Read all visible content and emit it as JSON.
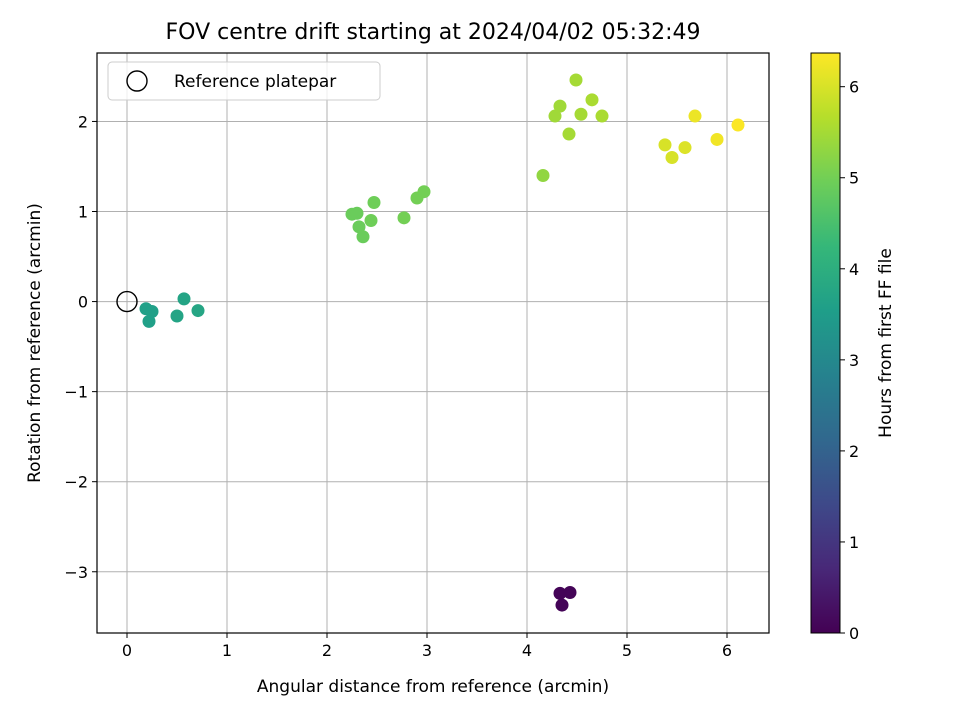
{
  "chart_data": {
    "type": "scatter",
    "title": "FOV centre drift starting at 2024/04/02 05:32:49",
    "xlabel": "Angular distance from reference (arcmin)",
    "ylabel": "Rotation from reference (arcmin)",
    "xlim": [
      -0.3,
      6.42
    ],
    "ylim": [
      -3.68,
      2.76
    ],
    "xticks": [
      0,
      1,
      2,
      3,
      4,
      5,
      6
    ],
    "yticks": [
      -3,
      -2,
      -1,
      0,
      1,
      2
    ],
    "xtick_labels": [
      "0",
      "1",
      "2",
      "3",
      "4",
      "5",
      "6"
    ],
    "ytick_labels": [
      "−3",
      "−2",
      "−1",
      "0",
      "1",
      "2"
    ],
    "grid": true,
    "legend": {
      "placement": "upper-left",
      "entries": [
        "Reference platepar"
      ]
    },
    "reference_point": {
      "x": 0,
      "y": 0,
      "marker": "open-circle"
    },
    "colorbar": {
      "label": "Hours from first FF file",
      "colormap": "viridis",
      "range": [
        0,
        6.37
      ],
      "ticks": [
        0,
        1,
        2,
        3,
        4,
        5,
        6
      ],
      "tick_labels": [
        "0",
        "1",
        "2",
        "3",
        "4",
        "5",
        "6"
      ]
    },
    "points": [
      {
        "x": 4.33,
        "y": -3.24,
        "c": 0.05
      },
      {
        "x": 4.35,
        "y": -3.37,
        "c": 0.05
      },
      {
        "x": 4.43,
        "y": -3.23,
        "c": 0.05
      },
      {
        "x": 0.19,
        "y": -0.08,
        "c": 3.6
      },
      {
        "x": 0.25,
        "y": -0.11,
        "c": 3.6
      },
      {
        "x": 0.22,
        "y": -0.22,
        "c": 3.6
      },
      {
        "x": 0.5,
        "y": -0.16,
        "c": 3.7
      },
      {
        "x": 0.57,
        "y": 0.03,
        "c": 3.7
      },
      {
        "x": 0.71,
        "y": -0.1,
        "c": 3.75
      },
      {
        "x": 2.25,
        "y": 0.97,
        "c": 4.9
      },
      {
        "x": 2.3,
        "y": 0.98,
        "c": 4.9
      },
      {
        "x": 2.32,
        "y": 0.83,
        "c": 4.9
      },
      {
        "x": 2.36,
        "y": 0.72,
        "c": 4.9
      },
      {
        "x": 2.44,
        "y": 0.9,
        "c": 4.95
      },
      {
        "x": 2.47,
        "y": 1.1,
        "c": 4.95
      },
      {
        "x": 2.77,
        "y": 0.93,
        "c": 5.0
      },
      {
        "x": 2.9,
        "y": 1.15,
        "c": 5.0
      },
      {
        "x": 2.97,
        "y": 1.22,
        "c": 5.0
      },
      {
        "x": 4.16,
        "y": 1.4,
        "c": 5.3
      },
      {
        "x": 4.28,
        "y": 2.06,
        "c": 5.45
      },
      {
        "x": 4.33,
        "y": 2.17,
        "c": 5.45
      },
      {
        "x": 4.42,
        "y": 1.86,
        "c": 5.5
      },
      {
        "x": 4.49,
        "y": 2.46,
        "c": 5.5
      },
      {
        "x": 4.54,
        "y": 2.08,
        "c": 5.5
      },
      {
        "x": 4.65,
        "y": 2.24,
        "c": 5.55
      },
      {
        "x": 4.75,
        "y": 2.06,
        "c": 5.55
      },
      {
        "x": 5.38,
        "y": 1.74,
        "c": 6.0
      },
      {
        "x": 5.45,
        "y": 1.6,
        "c": 6.0
      },
      {
        "x": 5.58,
        "y": 1.71,
        "c": 6.05
      },
      {
        "x": 5.68,
        "y": 2.06,
        "c": 6.2
      },
      {
        "x": 5.9,
        "y": 1.8,
        "c": 6.25
      },
      {
        "x": 6.11,
        "y": 1.96,
        "c": 6.35
      }
    ]
  },
  "colors": {
    "viridis_stops": [
      "#440154",
      "#482878",
      "#3e4989",
      "#31688e",
      "#26828e",
      "#1f9e89",
      "#35b779",
      "#6ece58",
      "#b5de2b",
      "#fde725"
    ],
    "grid": "#b0b0b0",
    "axes": "#000000",
    "legend_border": "#cccccc"
  }
}
